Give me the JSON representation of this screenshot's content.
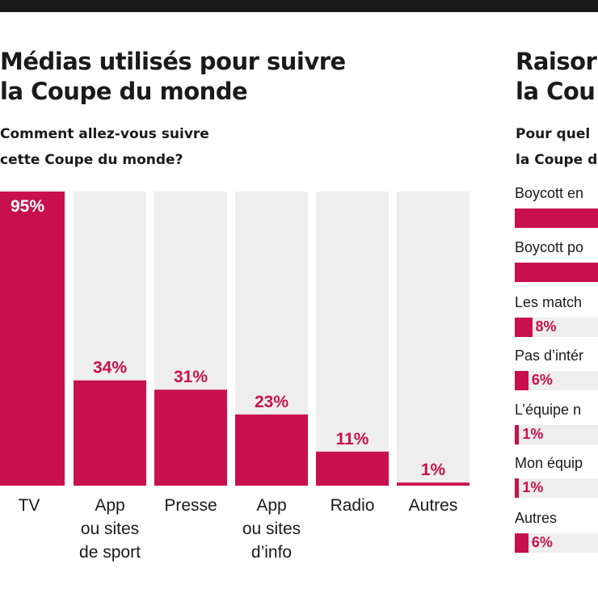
{
  "chart_data": [
    {
      "type": "bar",
      "title": "Médias utilisés pour suivre la Coupe du monde",
      "title_lines": [
        "Médias utilisés pour suivre",
        "la Coupe du monde"
      ],
      "subtitle_lines": [
        "Comment allez-vous suivre",
        "cette Coupe du monde?"
      ],
      "categories": [
        "TV",
        "App ou sites de sport",
        "Presse",
        "App ou sites d’info",
        "Radio",
        "Autres"
      ],
      "category_lines": [
        [
          "TV"
        ],
        [
          "App",
          "ou sites",
          "de sport"
        ],
        [
          "Presse"
        ],
        [
          "App",
          "ou sites",
          "d’info"
        ],
        [
          "Radio"
        ],
        [
          "Autres"
        ]
      ],
      "values": [
        95,
        34,
        31,
        23,
        11,
        1
      ],
      "value_labels": [
        "95%",
        "34%",
        "31%",
        "23%",
        "11%",
        "1%"
      ],
      "ylim": [
        0,
        100
      ],
      "grid": false
    },
    {
      "type": "bar",
      "orientation": "horizontal",
      "title_lines": [
        "Raisor",
        "la Cou"
      ],
      "subtitle_lines": [
        "Pour quel",
        "la Coupe d"
      ],
      "categories": [
        "Boycott en",
        "Boycott po",
        "Les match",
        "Pas d’intér",
        "L’équipe n",
        "Mon équip",
        "Autres"
      ],
      "values": [
        null,
        null,
        8,
        6,
        1,
        1,
        6
      ],
      "value_labels": [
        "",
        "",
        "8%",
        "6%",
        "1%",
        "1%",
        "6%"
      ],
      "xlim": [
        0,
        100
      ]
    }
  ],
  "colors": {
    "bar": "#c8104f",
    "track": "#eeeeee",
    "text": "#1a1a1a",
    "top_bar": "#1a1a1a"
  }
}
